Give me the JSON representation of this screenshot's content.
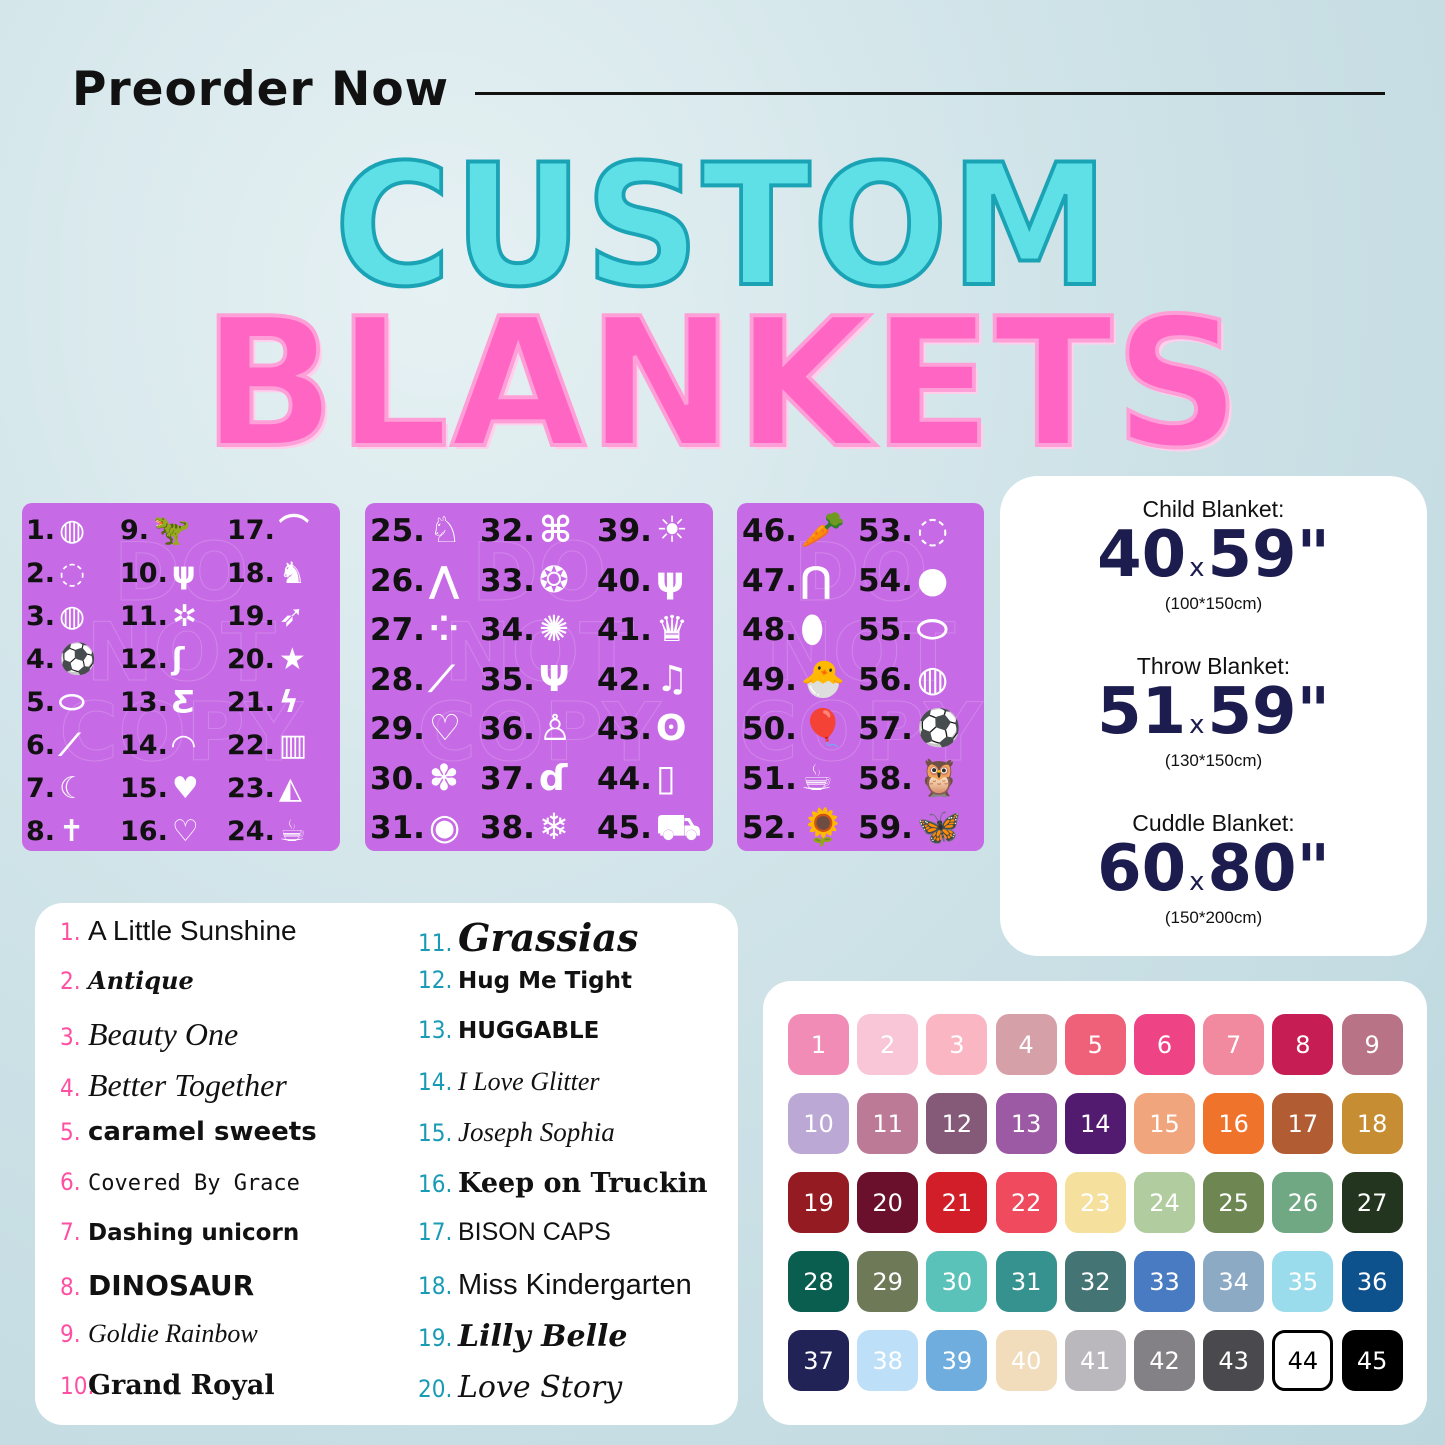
{
  "header": {
    "preorder": "Preorder Now",
    "title_line1": "CUSTOM",
    "title_line2": "BLANKETS"
  },
  "watermark": "DO NOT COPY",
  "colors": {
    "title_cyan": "#5ee0e6",
    "title_pink": "#ff66c4",
    "panel_purple": "#c76ae6",
    "size_navy": "#1c1c4e",
    "font_num_pink": "#ff4fa3",
    "font_num_teal": "#1a9bb5"
  },
  "design_panels": [
    {
      "columns": [
        [
          {
            "n": "1.",
            "icon": "volleyball-icon"
          },
          {
            "n": "2.",
            "icon": "baseball-icon"
          },
          {
            "n": "3.",
            "icon": "basketball-icon"
          },
          {
            "n": "4.",
            "icon": "soccer-ball-icon"
          },
          {
            "n": "5.",
            "icon": "football-icon"
          },
          {
            "n": "6.",
            "icon": "baseball-bat-icon"
          },
          {
            "n": "7.",
            "icon": "moon-stars-icon"
          },
          {
            "n": "8.",
            "icon": "cross-icon"
          }
        ],
        [
          {
            "n": "9.",
            "icon": "dinosaur-icon"
          },
          {
            "n": "10.",
            "icon": "dino-footprints-icon"
          },
          {
            "n": "11.",
            "icon": "bee-icon"
          },
          {
            "n": "12.",
            "icon": "mermaid-icon"
          },
          {
            "n": "13.",
            "icon": "butterfly-icon"
          },
          {
            "n": "14.",
            "icon": "rainbow-icon"
          },
          {
            "n": "15.",
            "icon": "heart-icon"
          },
          {
            "n": "16.",
            "icon": "heart-outline-icon"
          }
        ],
        [
          {
            "n": "17.",
            "icon": "stretching-cat-icon"
          },
          {
            "n": "18.",
            "icon": "cat-icon"
          },
          {
            "n": "19.",
            "icon": "rocket-icon"
          },
          {
            "n": "20.",
            "icon": "star-icon"
          },
          {
            "n": "21.",
            "icon": "lightning-icon"
          },
          {
            "n": "22.",
            "icon": "books-icon"
          },
          {
            "n": "23.",
            "icon": "pizza-icon"
          },
          {
            "n": "24.",
            "icon": "coffee-cup-icon"
          }
        ]
      ]
    },
    {
      "columns": [
        [
          {
            "n": "25.",
            "icon": "unicorn-icon"
          },
          {
            "n": "26.",
            "icon": "unicorn-horn-icon"
          },
          {
            "n": "27.",
            "icon": "paw-prints-icon"
          },
          {
            "n": "28.",
            "icon": "bone-icon"
          },
          {
            "n": "29.",
            "icon": "heart-paw-icon"
          },
          {
            "n": "30.",
            "icon": "paw-icon"
          },
          {
            "n": "31.",
            "icon": "paw-circle-icon"
          }
        ],
        [
          {
            "n": "32.",
            "icon": "game-controller-icon"
          },
          {
            "n": "33.",
            "icon": "turtle-icon"
          },
          {
            "n": "34.",
            "icon": "sunflower-outline-icon"
          },
          {
            "n": "35.",
            "icon": "deer-icon"
          },
          {
            "n": "36.",
            "icon": "dog-and-cat-icon"
          },
          {
            "n": "37.",
            "icon": "dog-line-icon"
          },
          {
            "n": "38.",
            "icon": "snowflake-icon"
          }
        ],
        [
          {
            "n": "39.",
            "icon": "sun-icon"
          },
          {
            "n": "40.",
            "icon": "cactus-icon"
          },
          {
            "n": "41.",
            "icon": "crown-icon"
          },
          {
            "n": "42.",
            "icon": "music-note-icon"
          },
          {
            "n": "43.",
            "icon": "ribbon-icon"
          },
          {
            "n": "44.",
            "icon": "coffee-to-go-icon"
          },
          {
            "n": "45.",
            "icon": "dump-truck-icon"
          }
        ]
      ]
    },
    {
      "columns": [
        [
          {
            "n": "46.",
            "icon": "carrots-icon"
          },
          {
            "n": "47.",
            "icon": "bunny-ears-icon"
          },
          {
            "n": "48.",
            "icon": "easter-eggs-icon"
          },
          {
            "n": "49.",
            "icon": "chick-in-egg-icon"
          },
          {
            "n": "50.",
            "icon": "balloons-icon"
          },
          {
            "n": "51.",
            "icon": "coffee-cup-icon"
          },
          {
            "n": "52.",
            "icon": "sunflower-icon"
          }
        ],
        [
          {
            "n": "53.",
            "icon": "baseball-icon"
          },
          {
            "n": "54.",
            "icon": "softball-icon"
          },
          {
            "n": "55.",
            "icon": "football-icon"
          },
          {
            "n": "56.",
            "icon": "volleyball-icon"
          },
          {
            "n": "57.",
            "icon": "soccer-ball-icon"
          },
          {
            "n": "58.",
            "icon": "owl-icon"
          },
          {
            "n": "59.",
            "icon": "blue-butterfly-icon"
          }
        ]
      ]
    }
  ],
  "sizes": [
    {
      "label": "Child Blanket:",
      "w": "40",
      "x": "x",
      "h": "59\"",
      "cm": "(100*150cm)"
    },
    {
      "label": "Throw Blanket:",
      "w": "51",
      "x": "x",
      "h": "59\"",
      "cm": "(130*150cm)"
    },
    {
      "label": "Cuddle Blanket:",
      "w": "60",
      "x": "x",
      "h": "80\"",
      "cm": "(150*200cm)"
    }
  ],
  "fonts": [
    {
      "n": "1.",
      "name": "A Little Sunshine"
    },
    {
      "n": "2.",
      "name": "Antique"
    },
    {
      "n": "3.",
      "name": "Beauty One"
    },
    {
      "n": "4.",
      "name": "Better Together"
    },
    {
      "n": "5.",
      "name": "caramel sweets"
    },
    {
      "n": "6.",
      "name": "Covered By Grace"
    },
    {
      "n": "7.",
      "name": "Dashing unicorn"
    },
    {
      "n": "8.",
      "name": "DINOSAUR"
    },
    {
      "n": "9.",
      "name": "Goldie Rainbow"
    },
    {
      "n": "10.",
      "name": "Grand Royal"
    },
    {
      "n": "11.",
      "name": "Grassias"
    },
    {
      "n": "12.",
      "name": "Hug Me Tight"
    },
    {
      "n": "13.",
      "name": "HUGGABLE"
    },
    {
      "n": "14.",
      "name": "I Love Glitter"
    },
    {
      "n": "15.",
      "name": "Joseph Sophia"
    },
    {
      "n": "16.",
      "name": "Keep on Truckin"
    },
    {
      "n": "17.",
      "name": "BISON CAPS"
    },
    {
      "n": "18.",
      "name": "Miss Kindergarten"
    },
    {
      "n": "19.",
      "name": "Lilly Belle"
    },
    {
      "n": "20.",
      "name": "Love Story"
    }
  ],
  "swatches": [
    {
      "n": "1",
      "c": "#f08cb6"
    },
    {
      "n": "2",
      "c": "#f8c6d6"
    },
    {
      "n": "3",
      "c": "#fbb6c4"
    },
    {
      "n": "4",
      "c": "#d6a0a8"
    },
    {
      "n": "5",
      "c": "#ef6079"
    },
    {
      "n": "6",
      "c": "#ee4485"
    },
    {
      "n": "7",
      "c": "#f18a9e"
    },
    {
      "n": "8",
      "c": "#c71d55"
    },
    {
      "n": "9",
      "c": "#b97387"
    },
    {
      "n": "10",
      "c": "#bca8d4"
    },
    {
      "n": "11",
      "c": "#bc7a96"
    },
    {
      "n": "12",
      "c": "#845a78"
    },
    {
      "n": "13",
      "c": "#9b5aa3"
    },
    {
      "n": "14",
      "c": "#521b70"
    },
    {
      "n": "15",
      "c": "#f0a57c"
    },
    {
      "n": "16",
      "c": "#ef732b"
    },
    {
      "n": "17",
      "c": "#b25c33"
    },
    {
      "n": "18",
      "c": "#c78d33"
    },
    {
      "n": "19",
      "c": "#951b22"
    },
    {
      "n": "20",
      "c": "#6a0f2c"
    },
    {
      "n": "21",
      "c": "#d21e28"
    },
    {
      "n": "22",
      "c": "#ef4a5e"
    },
    {
      "n": "23",
      "c": "#f5e09e"
    },
    {
      "n": "24",
      "c": "#b1cc9f"
    },
    {
      "n": "25",
      "c": "#6e8752"
    },
    {
      "n": "26",
      "c": "#6fa883"
    },
    {
      "n": "27",
      "c": "#23351f"
    },
    {
      "n": "28",
      "c": "#0a5e4f"
    },
    {
      "n": "29",
      "c": "#6e7957"
    },
    {
      "n": "30",
      "c": "#5bc2ba"
    },
    {
      "n": "31",
      "c": "#36928f"
    },
    {
      "n": "32",
      "c": "#447474"
    },
    {
      "n": "33",
      "c": "#487bc1"
    },
    {
      "n": "34",
      "c": "#8caac4"
    },
    {
      "n": "35",
      "c": "#9adcec"
    },
    {
      "n": "36",
      "c": "#0d518d"
    },
    {
      "n": "37",
      "c": "#212255"
    },
    {
      "n": "38",
      "c": "#bde0f8"
    },
    {
      "n": "39",
      "c": "#6fadde"
    },
    {
      "n": "40",
      "c": "#f1dcbc"
    },
    {
      "n": "41",
      "c": "#bab7bd"
    },
    {
      "n": "42",
      "c": "#838185"
    },
    {
      "n": "43",
      "c": "#4a494e"
    },
    {
      "n": "44",
      "c": "#ffffff"
    },
    {
      "n": "45",
      "c": "#000000"
    }
  ]
}
